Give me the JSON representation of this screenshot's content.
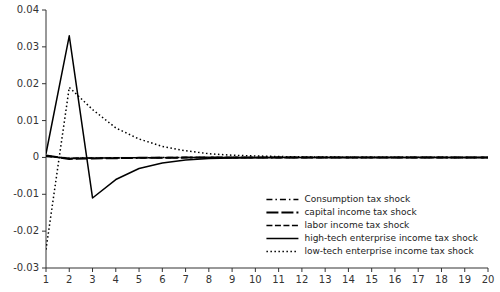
{
  "chart_data": {
    "type": "line",
    "x": [
      1,
      2,
      3,
      4,
      5,
      6,
      7,
      8,
      9,
      10,
      11,
      12,
      13,
      14,
      15,
      16,
      17,
      18,
      19,
      20
    ],
    "series": [
      {
        "name": "Consumption tax shock",
        "color": "#000000",
        "line_style": "dashdot",
        "values": [
          0.0003,
          -0.0002,
          -0.00015,
          -0.0001,
          -7e-05,
          -5e-05,
          -3e-05,
          -2e-05,
          -1.5e-05,
          -1e-05,
          -8e-06,
          -5e-06,
          -3e-06,
          -2e-06,
          -1.5e-06,
          -1e-06,
          -8e-07,
          -5e-07,
          -3e-07,
          -2e-07
        ]
      },
      {
        "name": "capital income tax shock",
        "color": "#000000",
        "line_style": "longdash",
        "values": [
          0.0005,
          -0.0004,
          -0.0003,
          -0.0002,
          -0.00012,
          -8e-05,
          -5e-05,
          -3e-05,
          -2e-05,
          -1.5e-05,
          -1e-05,
          -7e-06,
          -5e-06,
          -3e-06,
          -2e-06,
          -1.5e-06,
          -1e-06,
          -7e-07,
          -5e-07,
          -3e-07
        ]
      },
      {
        "name": "labor income tax shock",
        "color": "#000000",
        "line_style": "dashed",
        "values": [
          0.0004,
          -0.0003,
          -0.0002,
          -0.00015,
          -0.0001,
          -7e-05,
          -4e-05,
          -3e-05,
          -2e-05,
          -1.2e-05,
          -8e-06,
          -5e-06,
          -3e-06,
          -2e-06,
          -1.5e-06,
          -1e-06,
          -7e-07,
          -5e-07,
          -3e-07,
          -2e-07
        ]
      },
      {
        "name": "high-tech enterprise income tax shock",
        "color": "#000000",
        "line_style": "solid",
        "values": [
          0.001,
          0.033,
          -0.011,
          -0.006,
          -0.003,
          -0.0015,
          -0.0007,
          -0.0003,
          -0.00015,
          -8e-05,
          -4e-05,
          -2e-05,
          -1e-05,
          -6e-06,
          -3e-06,
          -2e-06,
          -1.2e-06,
          -8e-07,
          -5e-07,
          -3e-07
        ]
      },
      {
        "name": "low-tech enterprise income tax shock",
        "color": "#000000",
        "line_style": "dotted",
        "values": [
          -0.025,
          0.019,
          0.013,
          0.008,
          0.005,
          0.003,
          0.0018,
          0.001,
          0.0006,
          0.0004,
          0.00025,
          0.00015,
          0.0001,
          7e-05,
          5e-05,
          3e-05,
          2e-05,
          1.5e-05,
          1e-05,
          7e-06
        ]
      }
    ],
    "xlim": [
      1,
      20
    ],
    "ylim": [
      -0.03,
      0.04
    ],
    "xticks": [
      1,
      2,
      3,
      4,
      5,
      6,
      7,
      8,
      9,
      10,
      11,
      12,
      13,
      14,
      15,
      16,
      17,
      18,
      19,
      20
    ],
    "yticks": [
      -0.03,
      -0.02,
      -0.01,
      0,
      0.01,
      0.02,
      0.03,
      0.04
    ],
    "legend": "lower right"
  }
}
